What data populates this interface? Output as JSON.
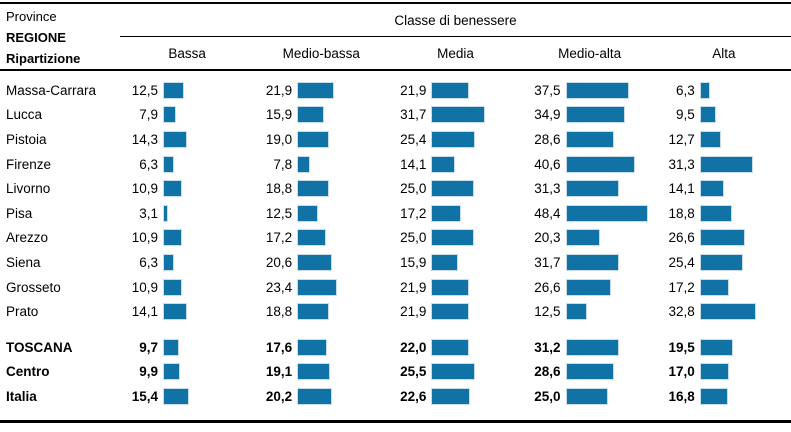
{
  "table": {
    "corner_line1": "Province",
    "corner_line2": "REGIONE",
    "corner_line3": "Ripartizione",
    "group_header": "Classe di benessere",
    "columns": [
      "Bassa",
      "Medio-bassa",
      "Media",
      "Medio-alta",
      "Alta"
    ],
    "rows": [
      {
        "label": "Massa-Carrara",
        "bold": false,
        "values": [
          "12,5",
          "21,9",
          "21,9",
          "37,5",
          "6,3"
        ]
      },
      {
        "label": "Lucca",
        "bold": false,
        "values": [
          "7,9",
          "15,9",
          "31,7",
          "34,9",
          "9,5"
        ]
      },
      {
        "label": "Pistoia",
        "bold": false,
        "values": [
          "14,3",
          "19,0",
          "25,4",
          "28,6",
          "12,7"
        ]
      },
      {
        "label": "Firenze",
        "bold": false,
        "values": [
          "6,3",
          "7,8",
          "14,1",
          "40,6",
          "31,3"
        ]
      },
      {
        "label": "Livorno",
        "bold": false,
        "values": [
          "10,9",
          "18,8",
          "25,0",
          "31,3",
          "14,1"
        ]
      },
      {
        "label": "Pisa",
        "bold": false,
        "values": [
          "3,1",
          "12,5",
          "17,2",
          "48,4",
          "18,8"
        ]
      },
      {
        "label": "Arezzo",
        "bold": false,
        "values": [
          "10,9",
          "17,2",
          "25,0",
          "20,3",
          "26,6"
        ]
      },
      {
        "label": "Siena",
        "bold": false,
        "values": [
          "6,3",
          "20,6",
          "15,9",
          "31,7",
          "25,4"
        ]
      },
      {
        "label": "Grosseto",
        "bold": false,
        "values": [
          "10,9",
          "23,4",
          "21,9",
          "26,6",
          "17,2"
        ]
      },
      {
        "label": "Prato",
        "bold": false,
        "values": [
          "14,1",
          "18,8",
          "21,9",
          "12,5",
          "32,8"
        ]
      },
      {
        "label": "TOSCANA",
        "bold": true,
        "values": [
          "9,7",
          "17,6",
          "22,0",
          "31,2",
          "19,5"
        ]
      },
      {
        "label": "Centro",
        "bold": true,
        "values": [
          "9,9",
          "19,1",
          "25,5",
          "28,6",
          "17,0"
        ]
      },
      {
        "label": "Italia",
        "bold": true,
        "values": [
          "15,4",
          "20,2",
          "22,6",
          "25,0",
          "16,8"
        ]
      }
    ],
    "colors": {
      "bar_fill": "#1173A5",
      "bar_border": "#C9DCEA",
      "line": "#000000"
    }
  },
  "chart_data": {
    "type": "bar",
    "orientation": "horizontal",
    "title": "Classe di benessere",
    "categories": [
      "Massa-Carrara",
      "Lucca",
      "Pistoia",
      "Firenze",
      "Livorno",
      "Pisa",
      "Arezzo",
      "Siena",
      "Grosseto",
      "Prato",
      "TOSCANA",
      "Centro",
      "Italia"
    ],
    "series": [
      {
        "name": "Bassa",
        "values": [
          12.5,
          7.9,
          14.3,
          6.3,
          10.9,
          3.1,
          10.9,
          6.3,
          10.9,
          14.1,
          9.7,
          9.9,
          15.4
        ]
      },
      {
        "name": "Medio-bassa",
        "values": [
          21.9,
          15.9,
          19.0,
          7.8,
          18.8,
          12.5,
          17.2,
          20.6,
          23.4,
          18.8,
          17.6,
          19.1,
          20.2
        ]
      },
      {
        "name": "Media",
        "values": [
          21.9,
          31.7,
          25.4,
          14.1,
          25.0,
          17.2,
          25.0,
          15.9,
          21.9,
          21.9,
          22.0,
          25.5,
          22.6
        ]
      },
      {
        "name": "Medio-alta",
        "values": [
          37.5,
          34.9,
          28.6,
          40.6,
          31.3,
          48.4,
          20.3,
          31.7,
          26.6,
          12.5,
          31.2,
          28.6,
          25.0
        ]
      },
      {
        "name": "Alta",
        "values": [
          6.3,
          9.5,
          12.7,
          31.3,
          14.1,
          18.8,
          26.6,
          25.4,
          17.2,
          32.8,
          19.5,
          17.0,
          16.8
        ]
      }
    ],
    "xlim": [
      0,
      50
    ],
    "value_labels": true,
    "unit": "percent",
    "legend_position": "column-headers",
    "grid": false
  }
}
